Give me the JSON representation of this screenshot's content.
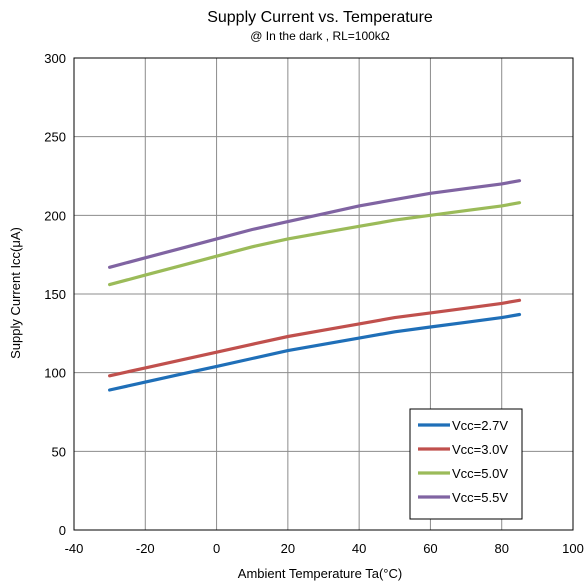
{
  "chart_data": {
    "type": "line",
    "title": "Supply Current vs. Temperature",
    "subtitle": "@ In the dark , RL=100kΩ",
    "xlabel": "Ambient Temperature Ta(°C)",
    "ylabel": "Supply Current Icc(μA)",
    "xlim": [
      -40,
      100
    ],
    "ylim": [
      0,
      300
    ],
    "xticks": [
      -40,
      -20,
      0,
      20,
      40,
      60,
      80,
      100
    ],
    "yticks": [
      0,
      50,
      100,
      150,
      200,
      250,
      300
    ],
    "grid": true,
    "legend_position": "bottom-right",
    "x": [
      -30,
      -20,
      -10,
      0,
      10,
      20,
      30,
      40,
      50,
      60,
      70,
      80,
      85
    ],
    "series": [
      {
        "name": "Vcc=2.7V",
        "color": "#1f6fb8",
        "values": [
          89,
          94,
          99,
          104,
          109,
          114,
          118,
          122,
          126,
          129,
          132,
          135,
          137
        ]
      },
      {
        "name": "Vcc=3.0V",
        "color": "#c0504d",
        "values": [
          98,
          103,
          108,
          113,
          118,
          123,
          127,
          131,
          135,
          138,
          141,
          144,
          146
        ]
      },
      {
        "name": "Vcc=5.0V",
        "color": "#9bbb59",
        "values": [
          156,
          162,
          168,
          174,
          180,
          185,
          189,
          193,
          197,
          200,
          203,
          206,
          208
        ]
      },
      {
        "name": "Vcc=5.5V",
        "color": "#8064a2",
        "values": [
          167,
          173,
          179,
          185,
          191,
          196,
          201,
          206,
          210,
          214,
          217,
          220,
          222
        ]
      }
    ]
  }
}
